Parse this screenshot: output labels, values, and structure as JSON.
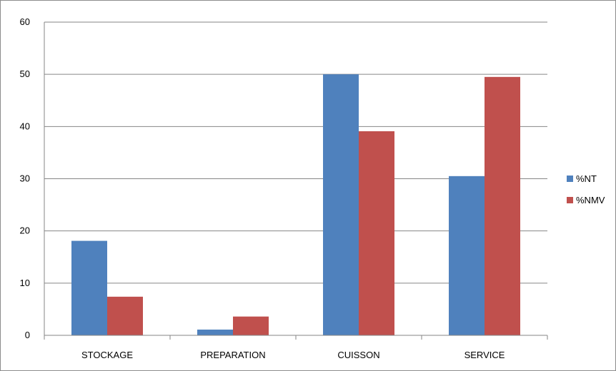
{
  "chart_data": {
    "type": "bar",
    "categories": [
      "STOCKAGE",
      "PREPARATION",
      "CUISSON",
      "SERVICE"
    ],
    "series": [
      {
        "name": "%NT",
        "color": "#4f81bd",
        "values": [
          18.1,
          1.1,
          50,
          30.5
        ]
      },
      {
        "name": "%NMV",
        "color": "#c0504d",
        "values": [
          7.4,
          3.6,
          39.1,
          49.5
        ]
      }
    ],
    "title": "",
    "xlabel": "",
    "ylabel": "",
    "ylim": [
      0,
      60
    ],
    "yticks": [
      0,
      10,
      20,
      30,
      40,
      50,
      60
    ],
    "grid": true,
    "legend": "right"
  }
}
